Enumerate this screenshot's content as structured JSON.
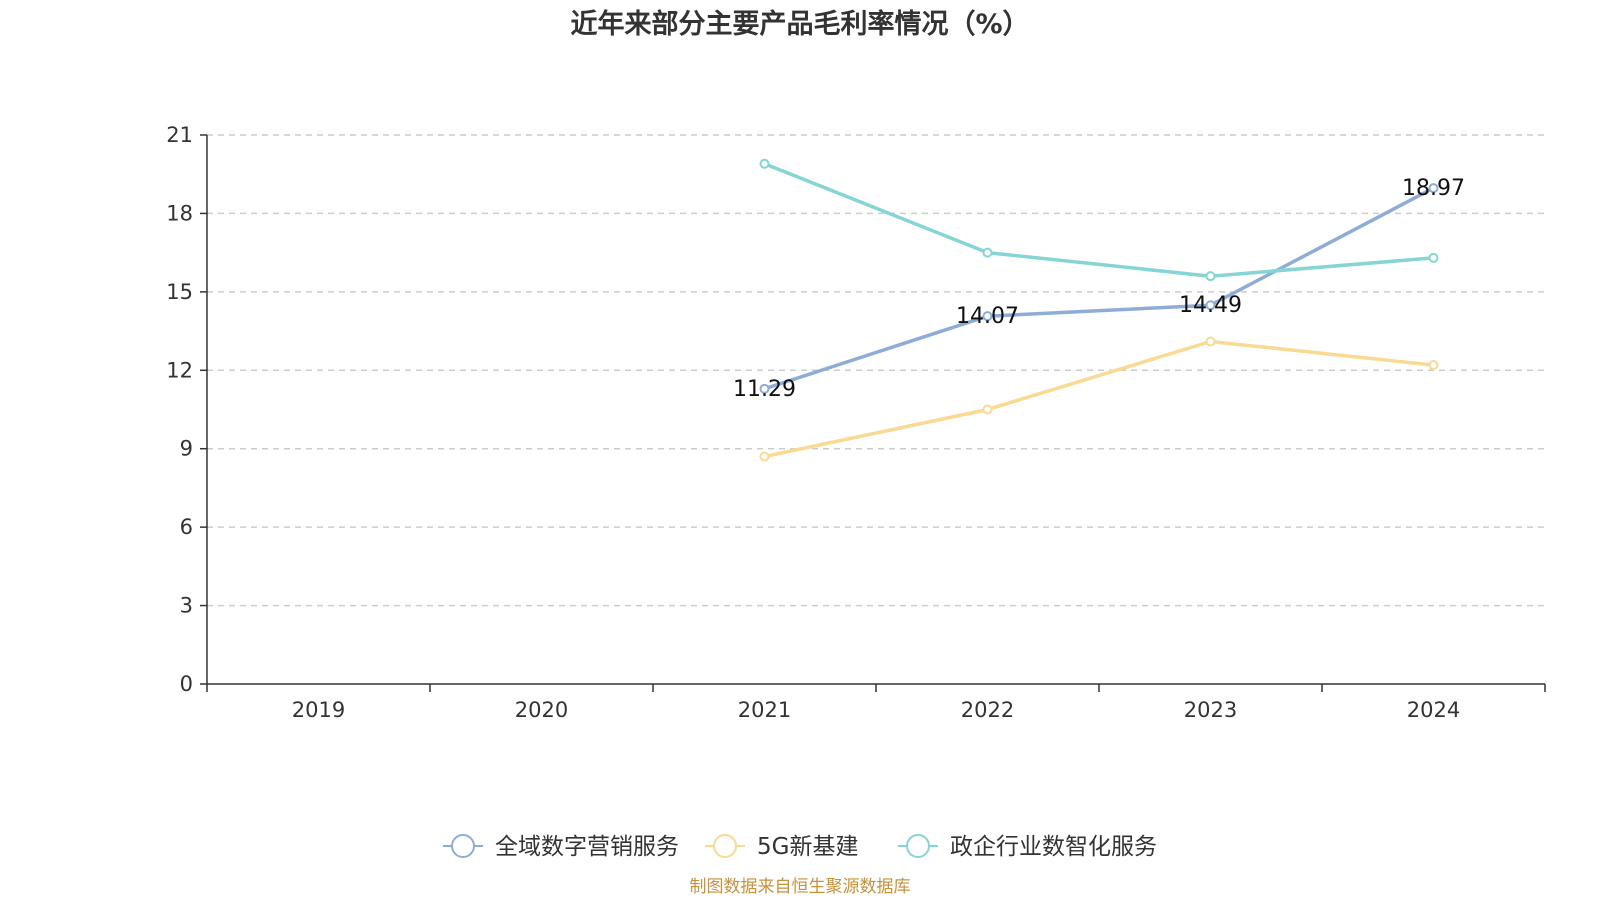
{
  "chart_data": {
    "type": "line",
    "title": "近年来部分主要产品毛利率情况（%）",
    "categories": [
      "2019",
      "2020",
      "2021",
      "2022",
      "2023",
      "2024"
    ],
    "ylim": [
      0,
      21
    ],
    "yticks": [
      0,
      3,
      6,
      9,
      12,
      15,
      18,
      21
    ],
    "ytick_labels": [
      "0",
      "3",
      "6",
      "9",
      "12",
      "15",
      "18",
      "21"
    ],
    "grid": "horizontal dashed",
    "legend_position": "bottom-center",
    "series": [
      {
        "name": "全域数字营销服务",
        "color": "#8eacd6",
        "values": [
          null,
          null,
          11.29,
          14.07,
          14.49,
          18.97
        ],
        "labels": [
          null,
          null,
          "11.29",
          "14.07",
          "14.49",
          "18.97"
        ]
      },
      {
        "name": "5G新基建",
        "color": "#fad992",
        "values": [
          null,
          null,
          8.7,
          10.5,
          13.1,
          12.2
        ],
        "labels": [
          null,
          null,
          null,
          null,
          null,
          null
        ]
      },
      {
        "name": "政企行业数智化服务",
        "color": "#86d4d4",
        "values": [
          null,
          null,
          19.9,
          16.5,
          15.6,
          16.3
        ],
        "labels": [
          null,
          null,
          null,
          null,
          null,
          null
        ]
      }
    ],
    "source": "制图数据来自恒生聚源数据库"
  }
}
